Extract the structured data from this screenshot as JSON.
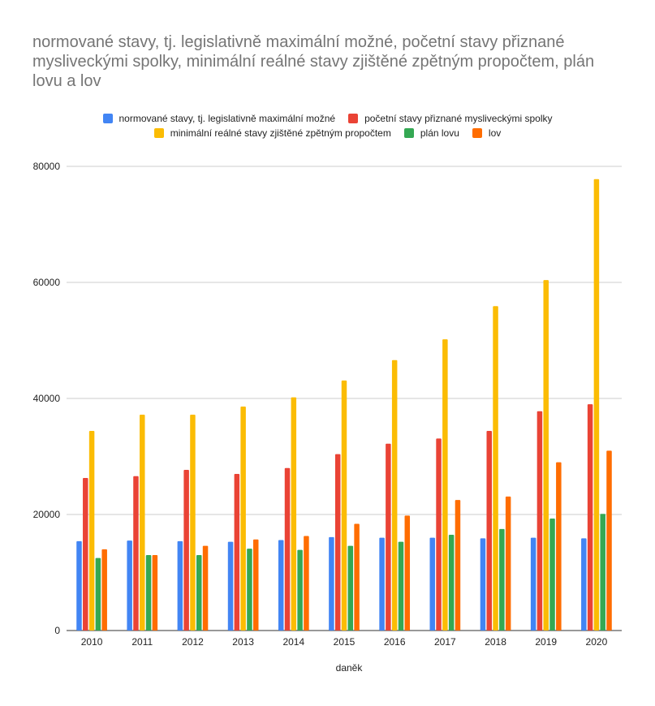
{
  "chart_data": {
    "type": "bar",
    "title": "normované stavy, tj. legislativně maximální možné, početní stavy přiznané mysliveckými spolky, minimální reálné stavy zjištěné zpětným propočtem, plán lovu a lov",
    "xlabel": "daněk",
    "ylabel": "",
    "ylim": [
      0,
      80000
    ],
    "yticks": [
      "0",
      "20000",
      "40000",
      "60000",
      "80000"
    ],
    "grid": true,
    "legend_position": "top",
    "categories": [
      "2010",
      "2011",
      "2012",
      "2013",
      "2014",
      "2015",
      "2016",
      "2017",
      "2018",
      "2019",
      "2020"
    ],
    "series": [
      {
        "name": "normované stavy, tj. legislativně maximální možné",
        "color": "#4285f4",
        "values": [
          15400,
          15500,
          15400,
          15300,
          15600,
          16100,
          16000,
          16000,
          15900,
          16000,
          15900
        ]
      },
      {
        "name": "početní stavy přiznané mysliveckými spolky",
        "color": "#ea4335",
        "values": [
          26300,
          26600,
          27700,
          27000,
          28000,
          30400,
          32200,
          33100,
          34400,
          37800,
          39000
        ]
      },
      {
        "name": "minimální reálné stavy zjištěné zpětným propočtem",
        "color": "#fbbc04",
        "values": [
          34400,
          37200,
          37200,
          38600,
          40200,
          43100,
          46600,
          50200,
          55900,
          60400,
          77800
        ]
      },
      {
        "name": "plán lovu",
        "color": "#34a853",
        "values": [
          12500,
          13000,
          13000,
          14100,
          13900,
          14600,
          15300,
          16500,
          17500,
          19300,
          20100
        ]
      },
      {
        "name": "lov",
        "color": "#ff6d01",
        "values": [
          14000,
          13000,
          14600,
          15700,
          16300,
          18400,
          19800,
          22500,
          23100,
          29000,
          31000
        ]
      }
    ]
  }
}
